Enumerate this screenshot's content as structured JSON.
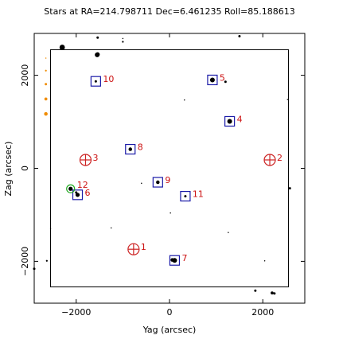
{
  "chart_data": {
    "type": "scatter",
    "title": "Stars at RA=214.798711 Dec=6.461235 Roll=85.188613",
    "xlabel": "Yag (arcsec)",
    "ylabel": "Zag (arcsec)",
    "xlim": [
      -2900,
      2900
    ],
    "ylim": [
      -2900,
      2900
    ],
    "xticks": [
      -2000,
      0,
      2000
    ],
    "yticks": [
      -2000,
      0,
      2000
    ],
    "xtick_labels": [
      "−2000",
      "0",
      "2000"
    ],
    "ytick_labels": [
      "−2000",
      "0",
      "2000"
    ],
    "grid": false,
    "ccd_boundary": {
      "yag": [
        -2550,
        2550
      ],
      "zag": [
        -2550,
        2550
      ]
    },
    "colors": {
      "guide_box": "#1a1aa8",
      "acq_circle": "#cc2222",
      "fid_circle": "#22aa22",
      "label": "#cc1111",
      "star": "#000000",
      "bad_star": "#f08c00",
      "axes": "#000000"
    },
    "guide_stars": [
      {
        "id": "4",
        "yag": 1290,
        "zag": 1010
      },
      {
        "id": "5",
        "yag": 920,
        "zag": 1900
      },
      {
        "id": "6",
        "yag": -1970,
        "zag": -570
      },
      {
        "id": "7",
        "yag": 110,
        "zag": -1980
      },
      {
        "id": "8",
        "yag": -840,
        "zag": 410
      },
      {
        "id": "9",
        "yag": -250,
        "zag": -300
      },
      {
        "id": "10",
        "yag": -1580,
        "zag": 1870
      },
      {
        "id": "11",
        "yag": 340,
        "zag": -600
      }
    ],
    "acq_stars": [
      {
        "id": "1",
        "yag": -770,
        "zag": -1740
      },
      {
        "id": "2",
        "yag": 2150,
        "zag": 180
      },
      {
        "id": "3",
        "yag": -1800,
        "zag": 180
      }
    ],
    "fid_lights": [
      {
        "id": "12",
        "yag": -2120,
        "zag": -440
      }
    ],
    "stars": [
      {
        "yag": -2300,
        "zag": 2600,
        "mag": 7.5
      },
      {
        "yag": -1550,
        "zag": 2440,
        "mag": 8
      },
      {
        "yag": -1540,
        "zag": 2450,
        "mag": 8.5
      },
      {
        "yag": -1540,
        "zag": 2810,
        "mag": 10
      },
      {
        "yag": -1000,
        "zag": 2790,
        "mag": 11
      },
      {
        "yag": -1000,
        "zag": 2720,
        "mag": 10.5
      },
      {
        "yag": 1500,
        "zag": 2840,
        "mag": 10
      },
      {
        "yag": 1290,
        "zag": 1010,
        "mag": 8
      },
      {
        "yag": 920,
        "zag": 1900,
        "mag": 8
      },
      {
        "yag": 1200,
        "zag": 1860,
        "mag": 10
      },
      {
        "yag": 2530,
        "zag": 1480,
        "mag": 11
      },
      {
        "yag": 320,
        "zag": 1470,
        "mag": 11
      },
      {
        "yag": -1580,
        "zag": 1870,
        "mag": 10
      },
      {
        "yag": -840,
        "zag": 410,
        "mag": 9
      },
      {
        "yag": -250,
        "zag": -300,
        "mag": 9
      },
      {
        "yag": -600,
        "zag": -320,
        "mag": 11
      },
      {
        "yag": 340,
        "zag": -600,
        "mag": 10
      },
      {
        "yag": 2580,
        "zag": -430,
        "mag": 10
      },
      {
        "yag": -2120,
        "zag": -440,
        "mag": 8.5
      },
      {
        "yag": -1970,
        "zag": -570,
        "mag": 8.5
      },
      {
        "yag": -2000,
        "zag": -520,
        "mag": 10
      },
      {
        "yag": 20,
        "zag": -960,
        "mag": 11
      },
      {
        "yag": -1250,
        "zag": -1280,
        "mag": 11
      },
      {
        "yag": -2550,
        "zag": -1300,
        "mag": 11
      },
      {
        "yag": 1260,
        "zag": -1380,
        "mag": 11
      },
      {
        "yag": 110,
        "zag": -1980,
        "mag": 8
      },
      {
        "yag": 60,
        "zag": -1970,
        "mag": 9
      },
      {
        "yag": -2630,
        "zag": -1990,
        "mag": 10.5
      },
      {
        "yag": 2040,
        "zag": -1990,
        "mag": 11
      },
      {
        "yag": -2900,
        "zag": -2160,
        "mag": 10
      },
      {
        "yag": 1840,
        "zag": -2630,
        "mag": 10
      },
      {
        "yag": 2200,
        "zag": -2680,
        "mag": 9.5
      },
      {
        "yag": 2250,
        "zag": -2690,
        "mag": 10
      }
    ],
    "bad_stars": [
      {
        "yag": -2650,
        "zag": 2370,
        "mag": 11
      },
      {
        "yag": -2650,
        "zag": 2100,
        "mag": 10.5
      },
      {
        "yag": -2650,
        "zag": 1810,
        "mag": 10
      },
      {
        "yag": -2650,
        "zag": 1490,
        "mag": 9.5
      },
      {
        "yag": -2650,
        "zag": 1170,
        "mag": 9
      }
    ]
  }
}
